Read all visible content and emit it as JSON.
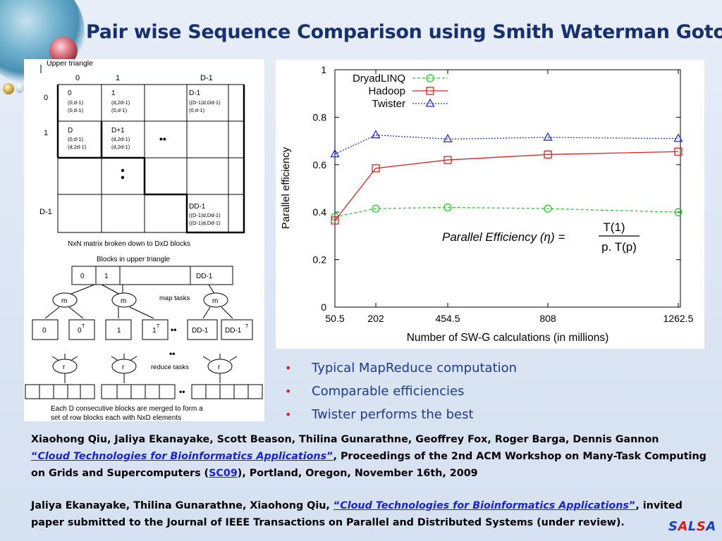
{
  "slide": {
    "title": "Pair wise Sequence Comparison using Smith Waterman Gotoh"
  },
  "diagram": {
    "upper_label": "Upper triangle",
    "col_headers": [
      "0",
      "1",
      "D-1"
    ],
    "row_headers": [
      "0",
      "1",
      "D-1"
    ],
    "cells": {
      "c00": [
        "0",
        "(0,d-1)",
        "(0,d-1)"
      ],
      "c01": [
        "1",
        "(d,2d-1)",
        "(0,d-1)"
      ],
      "c03": [
        "D-1",
        "((D-1)d,Dd-1)",
        "(0,d-1)"
      ],
      "c10": [
        "D",
        "(0,d-1)",
        "(d,2d-1)"
      ],
      "c11": [
        "D+1",
        "(d,2d-1)",
        "(d,2d-1)"
      ],
      "c33": [
        "DD-1",
        "((D-1)d,Dd-1)",
        "((D-1)d,Dd-1)"
      ]
    },
    "ellipsis_h": "••",
    "ellipsis_v": "•\n•",
    "matrix_caption": "NxN matrix broken down to DxD blocks",
    "blocks_caption": "Blocks in upper triangle",
    "blocks": [
      "0",
      "1",
      "DD-1"
    ],
    "map_label": "m",
    "map_tasks": "map tasks",
    "outputs": [
      "0",
      "0",
      "1",
      "1",
      "DD-1",
      "DD-1"
    ],
    "transpose_mark": "T",
    "reduce_label": "r",
    "reduce_tasks": "reduce tasks",
    "footer_line1": "Each D consecutive blocks are merged to form a",
    "footer_line2": "set of row blocks each with NxD elements"
  },
  "chart_data": {
    "type": "line",
    "x_labels": [
      "50.5",
      "202",
      "454.5",
      "808",
      "1262.5"
    ],
    "x": [
      50.5,
      202,
      454.5,
      808,
      1262.5
    ],
    "xlabel": "Number of SW-G calculations (in millions)",
    "ylabel": "Parallel efficiency",
    "ylim": [
      0,
      1
    ],
    "yticks": [
      "0",
      "0.2",
      "0.4",
      "0.6",
      "0.8",
      "1"
    ],
    "x_scale": "categorical",
    "legend_position": "top-left",
    "series": [
      {
        "name": "DryadLINQ",
        "values": [
          0.38,
          0.415,
          0.42,
          0.415,
          0.4
        ],
        "color": "#22cc22",
        "marker": "circle",
        "dash": "dashed"
      },
      {
        "name": "Hadoop",
        "values": [
          0.365,
          0.585,
          0.62,
          0.643,
          0.655
        ],
        "color": "#dd2222",
        "marker": "square",
        "dash": "solid"
      },
      {
        "name": "Twister",
        "values": [
          0.645,
          0.725,
          0.708,
          0.715,
          0.71
        ],
        "color": "#2233cc",
        "marker": "triangle",
        "dash": "dotted"
      }
    ],
    "formula": {
      "lhs": "Parallel Efficiency (η) =",
      "numerator": "T(1)",
      "denominator": "p. T(p)"
    }
  },
  "bullets": [
    "Typical MapReduce computation",
    "Comparable efficiencies",
    "Twister performs the best"
  ],
  "bullet_symbol": "•",
  "references": {
    "ref1_authors": "Xiaohong Qiu, Jaliya Ekanayake, Scott Beason, Thilina Gunarathne, Geoffrey Fox, Roger Barga, Dennis Gannon",
    "ref1_open_quote": "“",
    "ref1_title": "Cloud Technologies for Bioinformatics Applications",
    "ref1_close_quote": "”",
    "ref1_rest_a": ", Proceedings of the 2nd ACM Workshop on Many-Task Computing on Grids and Supercomputers (",
    "ref1_link": "SC09",
    "ref1_rest_b": "), Portland, Oregon, November 16th, 2009",
    "ref2_authors": "Jaliya Ekanayake, Thilina Gunarathne, Xiaohong Qiu, ",
    "ref2_open_quote": "“",
    "ref2_title": "Cloud Technologies for Bioinformatics Applications",
    "ref2_close_quote": "”",
    "ref2_rest": ", invited paper submitted to the Journal of IEEE Transactions on Parallel and Distributed Systems (under review)."
  },
  "logo": {
    "letters": [
      "S",
      "A",
      "L",
      "S",
      "A"
    ],
    "colors": [
      "#1a3fbf",
      "#d22020",
      "#1a3fbf",
      "#d22020",
      "#1a3fbf"
    ]
  }
}
